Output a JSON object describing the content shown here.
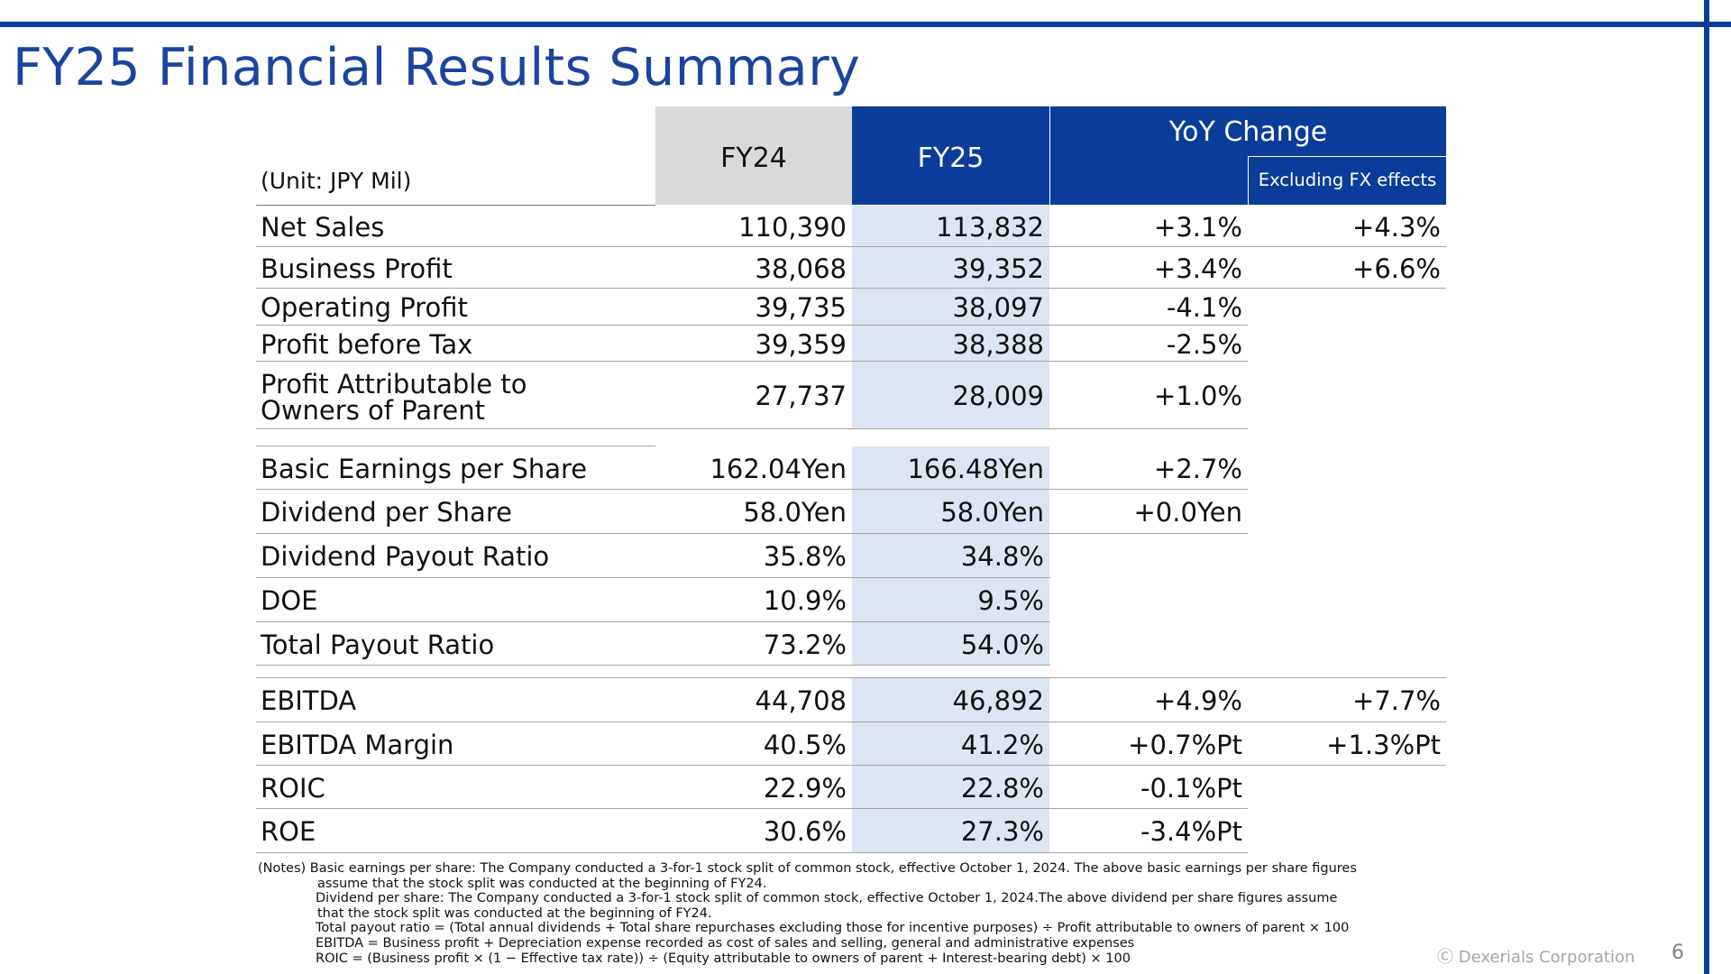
{
  "title": "FY25 Financial Results Summary",
  "header": {
    "unit": "(Unit: JPY Mil)",
    "fy24": "FY24",
    "fy25": "FY25",
    "yoy": "YoY Change",
    "excl_fx": "Excluding FX effects"
  },
  "rows": [
    {
      "label": "Net Sales",
      "fy24": "110,390",
      "fy25": "113,832",
      "yoy": "+3.1%",
      "fx": "+4.3%"
    },
    {
      "label": "Business Profit",
      "fy24": "38,068",
      "fy25": "39,352",
      "yoy": "+3.4%",
      "fx": "+6.6%"
    },
    {
      "label": "Operating Profit",
      "fy24": "39,735",
      "fy25": "38,097",
      "yoy": "-4.1%",
      "fx": ""
    },
    {
      "label": "Profit before Tax",
      "fy24": "39,359",
      "fy25": "38,388",
      "yoy": "-2.5%",
      "fx": ""
    },
    {
      "label": "Profit Attributable to",
      "label2": "Owners of Parent",
      "fy24": "27,737",
      "fy25": "28,009",
      "yoy": "+1.0%",
      "fx": ""
    },
    {
      "label": "Basic Earnings per Share",
      "fy24": "162.04Yen",
      "fy25": "166.48Yen",
      "yoy": "+2.7%",
      "fx": ""
    },
    {
      "label": "Dividend per Share",
      "fy24": "58.0Yen",
      "fy25": "58.0Yen",
      "yoy": "+0.0Yen",
      "fx": ""
    },
    {
      "label": "Dividend Payout Ratio",
      "fy24": "35.8%",
      "fy25": "34.8%",
      "yoy": "",
      "fx": ""
    },
    {
      "label": "DOE",
      "fy24": "10.9%",
      "fy25": "9.5%",
      "yoy": "",
      "fx": ""
    },
    {
      "label": "Total Payout Ratio",
      "fy24": "73.2%",
      "fy25": "54.0%",
      "yoy": "",
      "fx": ""
    },
    {
      "label": "EBITDA",
      "fy24": "44,708",
      "fy25": "46,892",
      "yoy": "+4.9%",
      "fx": "+7.7%"
    },
    {
      "label": "EBITDA Margin",
      "fy24": "40.5%",
      "fy25": "41.2%",
      "yoy": "+0.7%Pt",
      "fx": "+1.3%Pt"
    },
    {
      "label": "ROIC",
      "fy24": "22.9%",
      "fy25": "22.8%",
      "yoy": "-0.1%Pt",
      "fx": ""
    },
    {
      "label": "ROE",
      "fy24": "30.6%",
      "fy25": "27.3%",
      "yoy": "-3.4%Pt",
      "fx": ""
    }
  ],
  "notes": [
    "(Notes) Basic earnings per share: The Company conducted a 3-for-1 stock split of common stock, effective October 1, 2024. The above basic earnings per share figures",
    "assume that the stock split was conducted at the beginning of FY24.",
    "Dividend per share: The Company conducted a 3-for-1 stock split of common stock, effective October 1, 2024.The above dividend per share figures assume",
    "that the stock split was conducted at the beginning of FY24.",
    "Total payout ratio = (Total annual dividends + Total share repurchases excluding those for incentive purposes) ÷ Profit attributable to owners of parent × 100",
    "EBITDA = Business profit + Depreciation expense recorded as cost of sales and selling, general and administrative expenses",
    "ROIC = (Business profit × (1 − Effective tax rate)) ÷ (Equity attributable to owners of parent + Interest-bearing debt) × 100"
  ],
  "footer": "Ⓒ Dexerials Corporation",
  "page_number": "6",
  "colors": {
    "brand_blue": "#0a3d99",
    "title_blue": "#1a44a0",
    "fy25_band": "#dce6f2",
    "fy24_header": "#d9d9d9"
  }
}
